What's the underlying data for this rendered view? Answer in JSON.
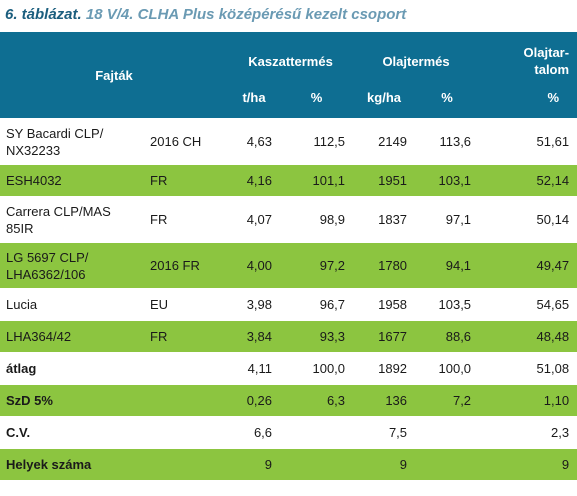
{
  "title": {
    "table_no": "6. táblázat.",
    "rest": " 18  V/4. CLHA Plus középérésű kezelt csoport"
  },
  "header": {
    "fajtak": "Fajták",
    "kaszattermes": "Kaszattermés",
    "olajtermes": "Olajtermés",
    "olajtartalom_line1": "Olajtar-",
    "olajtartalom_line2": "talom",
    "unit_tha": "t/ha",
    "unit_pct1": "%",
    "unit_kgha": "kg/ha",
    "unit_pct2": "%",
    "unit_pct3": "%"
  },
  "rows": [
    {
      "name_l1": "SY Bacardi CLP/",
      "name_l2": "NX32233",
      "code": "2016 CH",
      "tha": "4,63",
      "pct1": "112,5",
      "kgha": "2149",
      "pct2": "113,6",
      "oil": "51,61"
    },
    {
      "name_l1": "ESH4032",
      "name_l2": "",
      "code": "FR",
      "tha": "4,16",
      "pct1": "101,1",
      "kgha": "1951",
      "pct2": "103,1",
      "oil": "52,14"
    },
    {
      "name_l1": "Carrera CLP/MAS",
      "name_l2": "85IR",
      "code": "FR",
      "tha": "4,07",
      "pct1": "98,9",
      "kgha": "1837",
      "pct2": "97,1",
      "oil": "50,14"
    },
    {
      "name_l1": "LG 5697 CLP/",
      "name_l2": "LHA6362/106",
      "code": "2016 FR",
      "tha": "4,00",
      "pct1": "97,2",
      "kgha": "1780",
      "pct2": "94,1",
      "oil": "49,47"
    },
    {
      "name_l1": "Lucia",
      "name_l2": "",
      "code": "EU",
      "tha": "3,98",
      "pct1": "96,7",
      "kgha": "1958",
      "pct2": "103,5",
      "oil": "54,65"
    },
    {
      "name_l1": "LHA364/42",
      "name_l2": "",
      "code": "FR",
      "tha": "3,84",
      "pct1": "93,3",
      "kgha": "1677",
      "pct2": "88,6",
      "oil": "48,48"
    }
  ],
  "summary": [
    {
      "label": "átlag",
      "tha": "4,11",
      "pct1": "100,0",
      "kgha": "1892",
      "pct2": "100,0",
      "oil": "51,08"
    },
    {
      "label": "SzD 5%",
      "tha": "0,26",
      "pct1": "6,3",
      "kgha": "136",
      "pct2": "7,2",
      "oil": "1,10"
    },
    {
      "label": "C.V.",
      "tha": "6,6",
      "pct1": "",
      "kgha": "7,5",
      "pct2": "",
      "oil": "2,3"
    },
    {
      "label": "Helyek száma",
      "tha": "9",
      "pct1": "",
      "kgha": "9",
      "pct2": "",
      "oil": "9"
    }
  ],
  "colors": {
    "header": "#0e6e92",
    "green_row": "#8cc540",
    "title": "#1b5e7e"
  }
}
